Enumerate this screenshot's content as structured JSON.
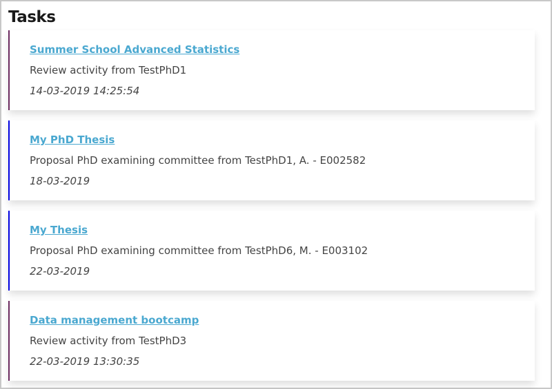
{
  "header": {
    "title": "Tasks"
  },
  "colors": {
    "review": "#6b2a5f",
    "proposal": "#0000e0",
    "link": "#4aa8d0"
  },
  "tasks": [
    {
      "title": "Summer School Advanced Statistics",
      "description": "Review activity from TestPhD1",
      "date": "14-03-2019 14:25:54",
      "type": "review"
    },
    {
      "title": "My PhD Thesis",
      "description": "Proposal PhD examining committee from TestPhD1, A. - E002582",
      "date": "18-03-2019",
      "type": "proposal"
    },
    {
      "title": "My Thesis",
      "description": "Proposal PhD examining committee from TestPhD6, M. - E003102",
      "date": "22-03-2019",
      "type": "proposal"
    },
    {
      "title": "Data management bootcamp",
      "description": "Review activity from TestPhD3",
      "date": "22-03-2019 13:30:35",
      "type": "review"
    }
  ]
}
